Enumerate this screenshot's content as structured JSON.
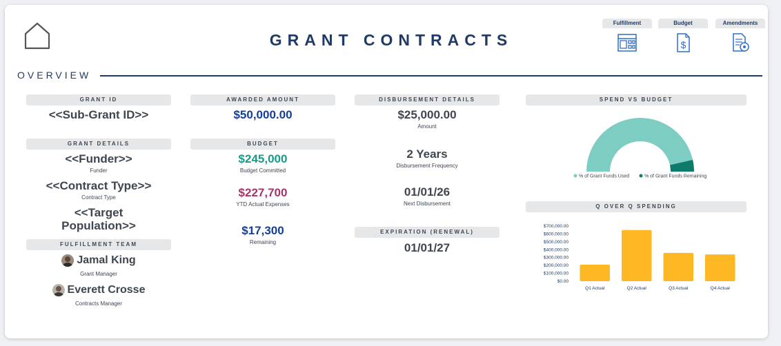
{
  "header": {
    "title": "GRANT CONTRACTS",
    "nav": [
      {
        "label": "Fulfillment",
        "icon": "dashboard-grid-icon"
      },
      {
        "label": "Budget",
        "icon": "dollar-document-icon"
      },
      {
        "label": "Amendments",
        "icon": "document-review-icon"
      }
    ]
  },
  "section": {
    "title": "OVERVIEW"
  },
  "grant_id": {
    "header": "GRANT ID",
    "value": "<<Sub-Grant ID>>"
  },
  "grant_details": {
    "header": "GRANT DETAILS",
    "funder_value": "<<Funder>>",
    "funder_label": "Funder",
    "contract_type_value": "<<Contract Type>>",
    "contract_type_label": "Contract Type",
    "target_population_line1": "<<Target",
    "target_population_line2": "Population>>"
  },
  "fulfillment_team": {
    "header": "FULFILLMENT TEAM",
    "members": [
      {
        "name": "Jamal King",
        "role": "Grant Manager"
      },
      {
        "name": "Everett Crosse",
        "role": "Contracts Manager"
      }
    ]
  },
  "awarded": {
    "header": "AWARDED AMOUNT",
    "value": "$50,000.00"
  },
  "budget": {
    "header": "BUDGET",
    "committed_value": "$245,000",
    "committed_label": "Budget Committed",
    "ytd_value": "$227,700",
    "ytd_label": "YTD Actual Expenses",
    "remaining_value": "$17,300",
    "remaining_label": "Remaining"
  },
  "disbursement": {
    "header": "DISBURSEMENT DETAILS",
    "amount_value": "$25,000.00",
    "amount_label": "Amount",
    "frequency_value": "2 Years",
    "frequency_label": "Disbursement Frequency",
    "next_value": "01/01/26",
    "next_label": "Next Disbursement"
  },
  "expiration": {
    "header": "EXPIRATION (RENEWAL)",
    "value": "01/01/27"
  },
  "spend_vs_budget": {
    "header": "SPEND VS BUDGET",
    "legend": [
      "% of Grant Funds Used",
      "% of Grant Funds Remaining"
    ],
    "colors": [
      "#7ecdc2",
      "#0e7a6b"
    ]
  },
  "q_over_q": {
    "header": "Q OVER Q SPENDING"
  },
  "chart_data": [
    {
      "type": "pie",
      "subtype": "half-donut",
      "title": "SPEND VS BUDGET",
      "labels": [
        "% of Grant Funds Used",
        "% of Grant Funds Remaining"
      ],
      "values": [
        227700,
        17300
      ],
      "colors": [
        "#7ecdc2",
        "#0e7a6b"
      ],
      "legend": "bottom"
    },
    {
      "type": "bar",
      "title": "Q OVER Q SPENDING",
      "categories": [
        "Q1 Actual",
        "Q2 Actual",
        "Q3 Actual",
        "Q4 Actual"
      ],
      "values": [
        210000,
        650000,
        360000,
        340000
      ],
      "ylim": [
        0,
        700000
      ],
      "yticks": [
        "$0.00",
        "$100,000.00",
        "$200,000.00",
        "$300,000.00",
        "$400,000.00",
        "$500,000.00",
        "$600,000.00",
        "$700,000.00"
      ],
      "color": "#fdb824",
      "grid": false
    }
  ]
}
